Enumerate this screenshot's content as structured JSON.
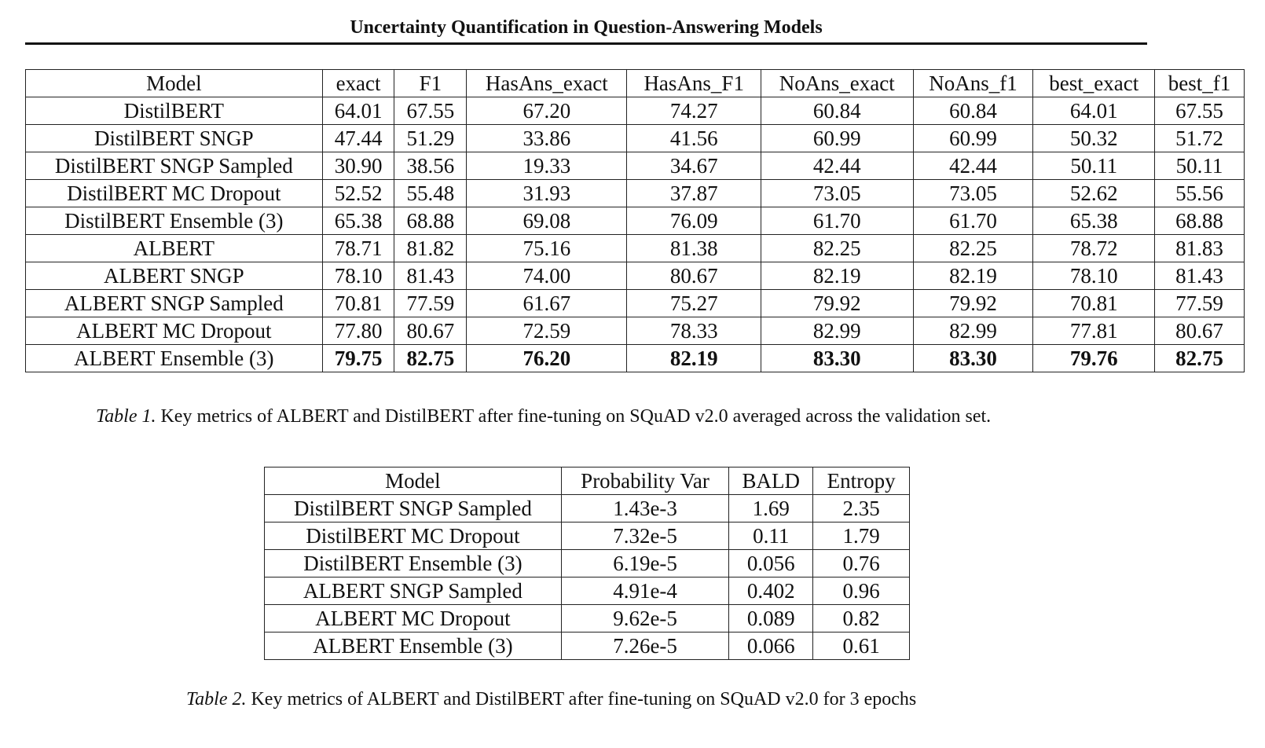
{
  "title": "Uncertainty Quantification in Question-Answering Models",
  "table1": {
    "headers": [
      "Model",
      "exact",
      "F1",
      "HasAns_exact",
      "HasAns_F1",
      "NoAns_exact",
      "NoAns_f1",
      "best_exact",
      "best_f1"
    ],
    "rows": [
      [
        "DistilBERT",
        "64.01",
        "67.55",
        "67.20",
        "74.27",
        "60.84",
        "60.84",
        "64.01",
        "67.55"
      ],
      [
        "DistilBERT SNGP",
        "47.44",
        "51.29",
        "33.86",
        "41.56",
        "60.99",
        "60.99",
        "50.32",
        "51.72"
      ],
      [
        "DistilBERT SNGP Sampled",
        "30.90",
        "38.56",
        "19.33",
        "34.67",
        "42.44",
        "42.44",
        "50.11",
        "50.11"
      ],
      [
        "DistilBERT MC Dropout",
        "52.52",
        "55.48",
        "31.93",
        "37.87",
        "73.05",
        "73.05",
        "52.62",
        "55.56"
      ],
      [
        "DistilBERT Ensemble (3)",
        "65.38",
        "68.88",
        "69.08",
        "76.09",
        "61.70",
        "61.70",
        "65.38",
        "68.88"
      ],
      [
        "ALBERT",
        "78.71",
        "81.82",
        "75.16",
        "81.38",
        "82.25",
        "82.25",
        "78.72",
        "81.83"
      ],
      [
        "ALBERT SNGP",
        "78.10",
        "81.43",
        "74.00",
        "80.67",
        "82.19",
        "82.19",
        "78.10",
        "81.43"
      ],
      [
        "ALBERT SNGP Sampled",
        "70.81",
        "77.59",
        "61.67",
        "75.27",
        "79.92",
        "79.92",
        "70.81",
        "77.59"
      ],
      [
        "ALBERT MC Dropout",
        "77.80",
        "80.67",
        "72.59",
        "78.33",
        "82.99",
        "82.99",
        "77.81",
        "80.67"
      ],
      [
        "ALBERT Ensemble (3)",
        "79.75",
        "82.75",
        "76.20",
        "82.19",
        "83.30",
        "83.30",
        "79.76",
        "82.75"
      ]
    ],
    "caption_label": "Table 1.",
    "caption_text": "Key metrics of ALBERT and DistilBERT after fine-tuning on SQuAD v2.0 averaged across the validation set."
  },
  "table2": {
    "headers": [
      "Model",
      "Probability Var",
      "BALD",
      "Entropy"
    ],
    "rows": [
      [
        "DistilBERT SNGP Sampled",
        "1.43e-3",
        "1.69",
        "2.35"
      ],
      [
        "DistilBERT MC Dropout",
        "7.32e-5",
        "0.11",
        "1.79"
      ],
      [
        "DistilBERT Ensemble (3)",
        "6.19e-5",
        "0.056",
        "0.76"
      ],
      [
        "ALBERT SNGP Sampled",
        "4.91e-4",
        "0.402",
        "0.96"
      ],
      [
        "ALBERT MC Dropout",
        "9.62e-5",
        "0.089",
        "0.82"
      ],
      [
        "ALBERT Ensemble (3)",
        "7.26e-5",
        "0.066",
        "0.61"
      ]
    ],
    "caption_label": "Table 2.",
    "caption_text": "Key metrics of ALBERT and DistilBERT after fine-tuning on SQuAD v2.0 for 3 epochs"
  }
}
